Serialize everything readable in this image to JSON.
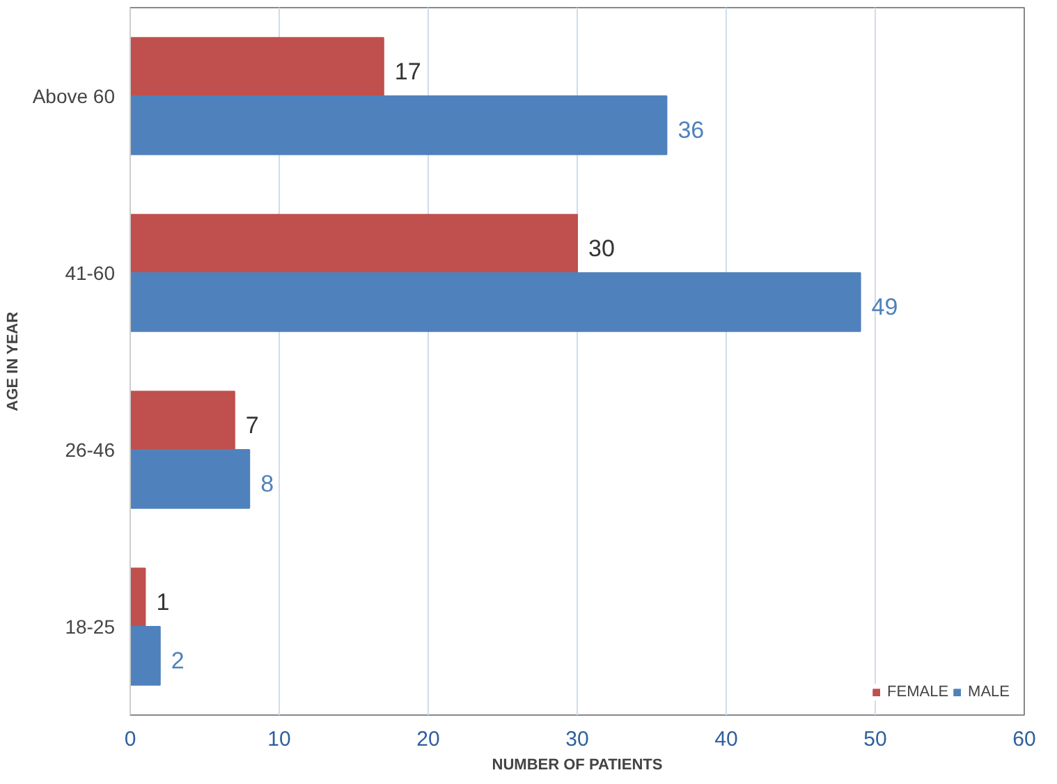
{
  "chart_data": {
    "type": "bar",
    "orientation": "horizontal",
    "xlabel": "NUMBER OF PATIENTS",
    "ylabel": "AGE IN YEAR",
    "categories": [
      "Above 60",
      "41-60",
      "26-46",
      "18-25"
    ],
    "series": [
      {
        "name": "FEMALE",
        "color": "#c0504d",
        "values": [
          17,
          30,
          7,
          1
        ]
      },
      {
        "name": "MALE",
        "color": "#4f81bd",
        "values": [
          36,
          49,
          8,
          2
        ]
      }
    ],
    "xlim": [
      0,
      60
    ],
    "xticks": [
      0,
      10,
      20,
      30,
      40,
      50,
      60
    ],
    "grid": "x",
    "data_labels": true,
    "legend": "bottom right"
  }
}
